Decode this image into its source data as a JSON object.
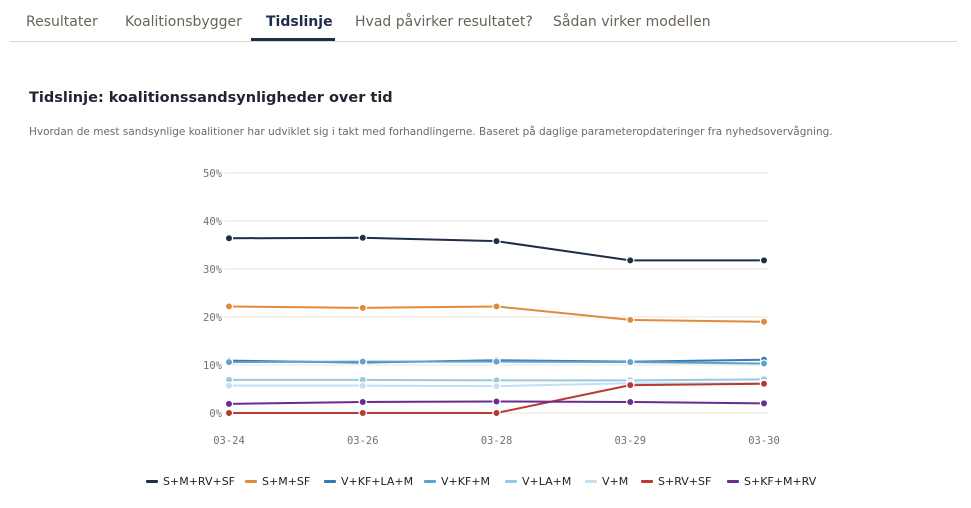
{
  "tabs": [
    {
      "label": "Resultater",
      "active": false
    },
    {
      "label": "Koalitionsbygger",
      "active": false
    },
    {
      "label": "Tidslinje",
      "active": true
    },
    {
      "label": "Hvad påvirker resultatet?",
      "active": false
    },
    {
      "label": "Sådan virker modellen",
      "active": false
    }
  ],
  "section": {
    "title": "Tidslinje: koalitionssandsynligheder over tid",
    "subtitle": "Hvordan de mest sandsynlige koalitioner har udviklet sig i takt med forhandlingerne. Baseret på daglige parameteropdateringer fra nyhedsovervågning."
  },
  "chart_data": {
    "type": "line",
    "x": [
      "03-24",
      "03-26",
      "03-28",
      "03-29",
      "03-30"
    ],
    "ylim": [
      0,
      50
    ],
    "yticks": [
      "0%",
      "10%",
      "20%",
      "30%",
      "40%",
      "50%"
    ],
    "grid": true,
    "legend_position": "bottom",
    "series": [
      {
        "name": "S+M+RV+SF",
        "color": "#1e2d4a",
        "values": [
          36.4,
          36.5,
          35.8,
          31.8,
          31.8
        ]
      },
      {
        "name": "S+M+SF",
        "color": "#e08a3c",
        "values": [
          22.2,
          21.9,
          22.2,
          19.4,
          19.0
        ]
      },
      {
        "name": "V+KF+LA+M",
        "color": "#3a78ad",
        "values": [
          10.9,
          10.5,
          11.0,
          10.7,
          11.1
        ]
      },
      {
        "name": "V+KF+M",
        "color": "#5ea3d0",
        "values": [
          10.6,
          10.7,
          10.7,
          10.6,
          10.3
        ]
      },
      {
        "name": "V+LA+M",
        "color": "#98c8e4",
        "values": [
          6.9,
          6.9,
          6.8,
          6.8,
          7.0
        ]
      },
      {
        "name": "V+M",
        "color": "#c4e0f0",
        "values": [
          5.7,
          5.7,
          5.6,
          6.2,
          6.2
        ]
      },
      {
        "name": "S+RV+SF",
        "color": "#b83a31",
        "values": [
          0.0,
          0.0,
          0.0,
          5.8,
          6.1
        ]
      },
      {
        "name": "S+KF+M+RV",
        "color": "#6a2c8f",
        "values": [
          1.9,
          2.3,
          2.4,
          2.3,
          2.0
        ]
      }
    ]
  }
}
